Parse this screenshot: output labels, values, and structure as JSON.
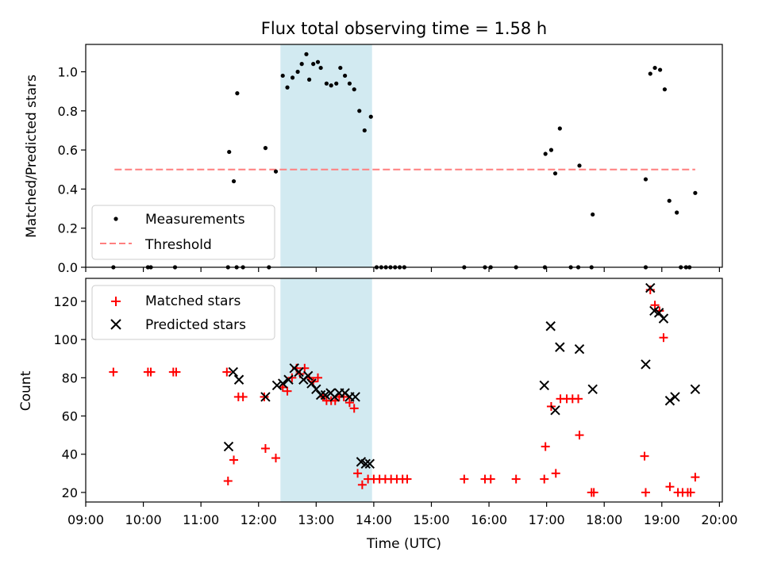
{
  "chart_data": [
    {
      "type": "scatter",
      "title": "Flux total observing time = 1.58 h",
      "ylabel": "Matched/Predicted stars",
      "xlim": [
        9.0,
        20.05
      ],
      "ylim": [
        0.0,
        1.14
      ],
      "yticks": [
        0.0,
        0.2,
        0.4,
        0.6,
        0.8,
        1.0
      ],
      "ytick_labels": [
        "0.0",
        "0.2",
        "0.4",
        "0.6",
        "0.8",
        "1.0"
      ],
      "shaded_interval": [
        12.38,
        13.97
      ],
      "shade_color": "#add8e6",
      "threshold": {
        "value": 0.5,
        "x_range": [
          9.5,
          19.58
        ],
        "color": "#ff7f7f"
      },
      "legend": {
        "position": "lower-left",
        "entries": [
          "Measurements",
          "Threshold"
        ]
      },
      "series": [
        {
          "name": "Measurements",
          "marker": "dot",
          "color": "#000000",
          "points": [
            [
              9.48,
              0.0
            ],
            [
              10.08,
              0.0
            ],
            [
              10.13,
              0.0
            ],
            [
              10.55,
              0.0
            ],
            [
              11.47,
              0.0
            ],
            [
              11.62,
              0.0
            ],
            [
              11.73,
              0.0
            ],
            [
              12.18,
              0.0
            ],
            [
              11.49,
              0.59
            ],
            [
              11.57,
              0.44
            ],
            [
              11.63,
              0.89
            ],
            [
              12.12,
              0.61
            ],
            [
              12.3,
              0.49
            ],
            [
              12.42,
              0.98
            ],
            [
              12.5,
              0.92
            ],
            [
              12.59,
              0.97
            ],
            [
              12.68,
              1.0
            ],
            [
              12.75,
              1.04
            ],
            [
              12.83,
              1.09
            ],
            [
              12.88,
              0.96
            ],
            [
              12.95,
              1.04
            ],
            [
              13.03,
              1.05
            ],
            [
              13.08,
              1.02
            ],
            [
              13.18,
              0.94
            ],
            [
              13.26,
              0.93
            ],
            [
              13.35,
              0.94
            ],
            [
              13.42,
              1.02
            ],
            [
              13.5,
              0.98
            ],
            [
              13.58,
              0.94
            ],
            [
              13.66,
              0.91
            ],
            [
              13.75,
              0.8
            ],
            [
              13.84,
              0.7
            ],
            [
              13.95,
              0.77
            ],
            [
              14.05,
              0.0
            ],
            [
              14.13,
              0.0
            ],
            [
              14.21,
              0.0
            ],
            [
              14.29,
              0.0
            ],
            [
              14.37,
              0.0
            ],
            [
              14.45,
              0.0
            ],
            [
              14.53,
              0.0
            ],
            [
              15.57,
              0.0
            ],
            [
              15.93,
              0.0
            ],
            [
              16.03,
              0.0
            ],
            [
              16.47,
              0.0
            ],
            [
              16.97,
              0.0
            ],
            [
              17.42,
              0.0
            ],
            [
              17.55,
              0.0
            ],
            [
              17.78,
              0.0
            ],
            [
              18.72,
              0.0
            ],
            [
              19.33,
              0.0
            ],
            [
              19.42,
              0.0
            ],
            [
              19.48,
              0.0
            ],
            [
              16.98,
              0.58
            ],
            [
              17.08,
              0.6
            ],
            [
              17.15,
              0.48
            ],
            [
              17.23,
              0.71
            ],
            [
              17.57,
              0.52
            ],
            [
              17.8,
              0.27
            ],
            [
              18.72,
              0.45
            ],
            [
              18.8,
              0.99
            ],
            [
              18.88,
              1.02
            ],
            [
              18.97,
              1.01
            ],
            [
              19.05,
              0.91
            ],
            [
              19.13,
              0.34
            ],
            [
              19.26,
              0.28
            ],
            [
              19.58,
              0.38
            ]
          ]
        }
      ]
    },
    {
      "type": "scatter",
      "xlabel": "Time (UTC)",
      "ylabel": "Count",
      "xlim": [
        9.0,
        20.05
      ],
      "ylim": [
        15,
        132
      ],
      "xticks": [
        9,
        10,
        11,
        12,
        13,
        14,
        15,
        16,
        17,
        18,
        19,
        20
      ],
      "xtick_labels": [
        "09:00",
        "10:00",
        "11:00",
        "12:00",
        "13:00",
        "14:00",
        "15:00",
        "16:00",
        "17:00",
        "18:00",
        "19:00",
        "20:00"
      ],
      "yticks": [
        20,
        40,
        60,
        80,
        100,
        120
      ],
      "ytick_labels": [
        "20",
        "40",
        "60",
        "80",
        "100",
        "120"
      ],
      "shaded_interval": [
        12.38,
        13.97
      ],
      "shade_color": "#add8e6",
      "legend": {
        "position": "upper-left",
        "entries": [
          "Matched stars",
          "Predicted stars"
        ]
      },
      "series": [
        {
          "name": "Matched stars",
          "marker": "plus",
          "color": "#ff0000",
          "points": [
            [
              9.48,
              83
            ],
            [
              10.08,
              83
            ],
            [
              10.13,
              83
            ],
            [
              10.52,
              83
            ],
            [
              10.57,
              83
            ],
            [
              11.45,
              83
            ],
            [
              11.47,
              26
            ],
            [
              11.57,
              37
            ],
            [
              11.65,
              70
            ],
            [
              11.73,
              70
            ],
            [
              12.12,
              43
            ],
            [
              12.3,
              38
            ],
            [
              12.1,
              70
            ],
            [
              12.42,
              75
            ],
            [
              12.5,
              73
            ],
            [
              12.58,
              80
            ],
            [
              12.66,
              85
            ],
            [
              12.72,
              82
            ],
            [
              12.8,
              85
            ],
            [
              12.88,
              80
            ],
            [
              12.95,
              78
            ],
            [
              13.03,
              80
            ],
            [
              13.12,
              70
            ],
            [
              13.18,
              68
            ],
            [
              13.26,
              68
            ],
            [
              13.33,
              68
            ],
            [
              13.4,
              70
            ],
            [
              13.48,
              70
            ],
            [
              13.58,
              67
            ],
            [
              13.66,
              64
            ],
            [
              13.72,
              30
            ],
            [
              13.8,
              24
            ],
            [
              13.9,
              27
            ],
            [
              14.0,
              27
            ],
            [
              14.1,
              27
            ],
            [
              14.2,
              27
            ],
            [
              14.3,
              27
            ],
            [
              14.4,
              27
            ],
            [
              14.5,
              27
            ],
            [
              14.58,
              27
            ],
            [
              15.57,
              27
            ],
            [
              15.93,
              27
            ],
            [
              16.03,
              27
            ],
            [
              16.47,
              27
            ],
            [
              16.96,
              27
            ],
            [
              16.98,
              44
            ],
            [
              17.08,
              65
            ],
            [
              17.16,
              30
            ],
            [
              17.24,
              69
            ],
            [
              17.35,
              69
            ],
            [
              17.45,
              69
            ],
            [
              17.55,
              69
            ],
            [
              17.57,
              50
            ],
            [
              17.78,
              20
            ],
            [
              17.82,
              20
            ],
            [
              18.7,
              39
            ],
            [
              18.72,
              20
            ],
            [
              18.8,
              126
            ],
            [
              18.88,
              118
            ],
            [
              18.96,
              115
            ],
            [
              19.03,
              101
            ],
            [
              19.14,
              23
            ],
            [
              19.28,
              20
            ],
            [
              19.36,
              20
            ],
            [
              19.45,
              20
            ],
            [
              19.5,
              20
            ],
            [
              19.58,
              28
            ]
          ]
        },
        {
          "name": "Predicted stars",
          "marker": "x",
          "color": "#000000",
          "points": [
            [
              11.48,
              44
            ],
            [
              11.56,
              83
            ],
            [
              11.66,
              79
            ],
            [
              12.12,
              70
            ],
            [
              12.32,
              76
            ],
            [
              12.42,
              77
            ],
            [
              12.52,
              79
            ],
            [
              12.62,
              85
            ],
            [
              12.7,
              83
            ],
            [
              12.78,
              79
            ],
            [
              12.86,
              81
            ],
            [
              12.92,
              77
            ],
            [
              13.0,
              74
            ],
            [
              13.08,
              71
            ],
            [
              13.16,
              71
            ],
            [
              13.25,
              72
            ],
            [
              13.32,
              70
            ],
            [
              13.4,
              72
            ],
            [
              13.5,
              72
            ],
            [
              13.58,
              70
            ],
            [
              13.68,
              70
            ],
            [
              13.78,
              36
            ],
            [
              13.86,
              35
            ],
            [
              13.93,
              35
            ],
            [
              16.96,
              76
            ],
            [
              17.07,
              107
            ],
            [
              17.15,
              63
            ],
            [
              17.23,
              96
            ],
            [
              17.57,
              95
            ],
            [
              17.8,
              74
            ],
            [
              18.72,
              87
            ],
            [
              18.8,
              127
            ],
            [
              18.87,
              115
            ],
            [
              18.95,
              114
            ],
            [
              19.03,
              111
            ],
            [
              19.14,
              68
            ],
            [
              19.23,
              70
            ],
            [
              19.58,
              74
            ]
          ]
        }
      ]
    }
  ]
}
